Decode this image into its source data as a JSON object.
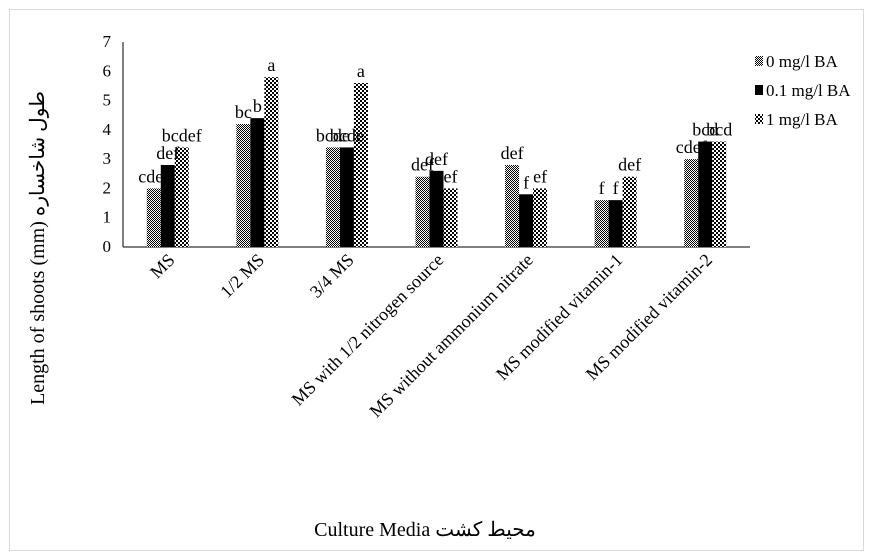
{
  "chart_data": {
    "type": "bar",
    "categories": [
      "MS",
      "1/2 MS",
      "3/4 MS",
      "MS with 1/2 nitrogen source",
      "MS without ammonium nitrate",
      "MS modified vitamin-1",
      "MS modified vitamin-2"
    ],
    "series": [
      {
        "name": "0 mg/l BA",
        "pattern": "checker",
        "values": [
          2.0,
          4.2,
          3.4,
          2.4,
          2.8,
          1.6,
          3.0
        ],
        "labels": [
          "cdef",
          "bc",
          "bcde",
          "def",
          "def",
          "f",
          "cdef"
        ]
      },
      {
        "name": "0.1 mg/l BA",
        "pattern": "solid",
        "values": [
          2.8,
          4.4,
          3.4,
          2.6,
          1.8,
          1.6,
          3.6
        ],
        "labels": [
          "def",
          "b",
          "bcde",
          "def",
          "f",
          "f",
          "bcd"
        ]
      },
      {
        "name": "1 mg/l BA",
        "pattern": "checker-coarse",
        "values": [
          3.4,
          5.8,
          5.6,
          2.0,
          2.0,
          2.4,
          3.6
        ],
        "labels": [
          "bcdef",
          "a",
          "a",
          "ef",
          "ef",
          "def",
          "bcd"
        ]
      }
    ],
    "xlabel": "Culture Media محیط کشت",
    "ylabel": "Length of shoots (mm) طول شاخساره",
    "ylim": [
      0,
      7
    ],
    "yticks": [
      0,
      1,
      2,
      3,
      4,
      5,
      6,
      7
    ],
    "grid": false,
    "legend": "right",
    "colors": {
      "bar": "#000000",
      "axis": "#000000",
      "background": "#ffffff",
      "border": "#d9d9d9"
    }
  }
}
